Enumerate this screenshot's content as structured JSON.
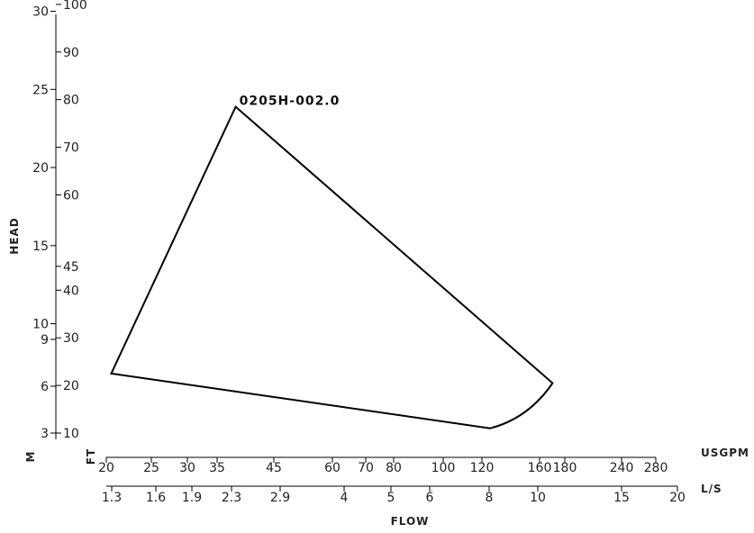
{
  "chart_data": {
    "type": "line",
    "title": "",
    "xlabel": "FLOW",
    "ylabel": "HEAD",
    "x_axes": [
      {
        "unit": "USGPM",
        "ticks": [
          20,
          25,
          30,
          35,
          45,
          60,
          70,
          80,
          100,
          120,
          160,
          180,
          240,
          280
        ],
        "scale": "log"
      },
      {
        "unit": "L/S",
        "ticks": [
          1.3,
          1.6,
          1.9,
          2.3,
          2.9,
          4,
          5,
          6,
          8,
          10,
          15,
          20
        ],
        "scale": "log"
      }
    ],
    "y_axes": [
      {
        "unit": "M",
        "ticks": [
          3,
          6,
          9,
          10,
          15,
          20,
          25,
          30
        ]
      },
      {
        "unit": "FT",
        "ticks": [
          10,
          20,
          30,
          40,
          45,
          60,
          70,
          80,
          90,
          100
        ]
      }
    ],
    "series": [
      {
        "name": "0205H-002.0",
        "type": "polygon",
        "x_usgpm": [
          20.5,
          38,
          170,
          125,
          20.5
        ],
        "y_ft": [
          22.5,
          78.5,
          20.5,
          11,
          22.5
        ]
      }
    ],
    "legend": "none",
    "grid": false
  }
}
